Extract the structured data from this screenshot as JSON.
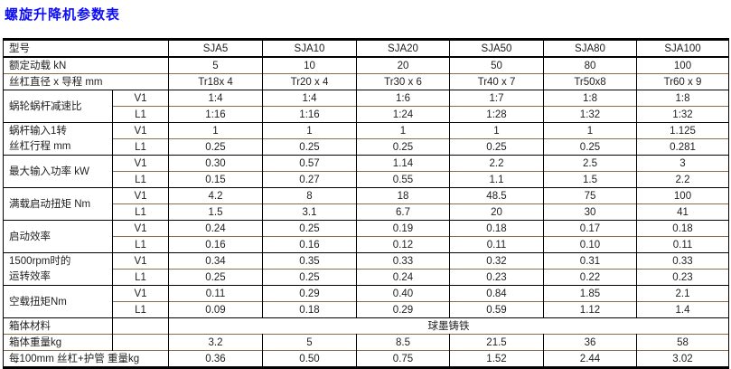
{
  "title": "螺旋升降机参数表",
  "colors": {
    "title": "#0e0ef4",
    "horizontal_rule": "#8a6d4c",
    "vertical_rule": "#000000",
    "text": "#1f1f1f"
  },
  "table": {
    "rows": [
      {
        "cells": [
          {
            "t": "型号",
            "cs": 2,
            "cls": "lbl"
          },
          {
            "t": "SJA5"
          },
          {
            "t": "SJA10"
          },
          {
            "t": "SJA20"
          },
          {
            "t": "SJA50"
          },
          {
            "t": "SJA80"
          },
          {
            "t": "SJA100"
          }
        ]
      },
      {
        "cells": [
          {
            "t": "额定动载 kN",
            "cs": 2,
            "cls": "lbl"
          },
          {
            "t": "5"
          },
          {
            "t": "10"
          },
          {
            "t": "20"
          },
          {
            "t": "50"
          },
          {
            "t": "80"
          },
          {
            "t": "100"
          }
        ]
      },
      {
        "cells": [
          {
            "t": "丝杠直径 x 导程 mm",
            "cs": 2,
            "cls": "lbl"
          },
          {
            "t": "Tr18x 4"
          },
          {
            "t": "Tr20 x 4"
          },
          {
            "t": "Tr30 x 6"
          },
          {
            "t": "Tr40 x 7"
          },
          {
            "t": "Tr50x8"
          },
          {
            "t": "Tr60 x 9"
          }
        ]
      },
      {
        "cells": [
          {
            "t": "蜗轮蜗杆减速比",
            "rs": 2,
            "cls": "lbl"
          },
          {
            "t": "V1",
            "cls": "sub"
          },
          {
            "t": "1:4"
          },
          {
            "t": "1:4"
          },
          {
            "t": "1:6"
          },
          {
            "t": "1:7"
          },
          {
            "t": "1:8"
          },
          {
            "t": "1:8"
          }
        ]
      },
      {
        "cells": [
          {
            "t": "L1",
            "cls": "sub"
          },
          {
            "t": "1:16"
          },
          {
            "t": "1:16"
          },
          {
            "t": "1:24"
          },
          {
            "t": "1:28"
          },
          {
            "t": "1:32"
          },
          {
            "t": "1:32"
          }
        ]
      },
      {
        "cells": [
          {
            "t": "蜗杆输入1转\n丝杠行程 mm",
            "rs": 2,
            "cls": "lbl pre"
          },
          {
            "t": "V1",
            "cls": "sub"
          },
          {
            "t": "1"
          },
          {
            "t": "1"
          },
          {
            "t": "1"
          },
          {
            "t": "1"
          },
          {
            "t": "1"
          },
          {
            "t": "1.125"
          }
        ]
      },
      {
        "cells": [
          {
            "t": "L1",
            "cls": "sub"
          },
          {
            "t": "0.25"
          },
          {
            "t": "0.25"
          },
          {
            "t": "0.25"
          },
          {
            "t": "0.25"
          },
          {
            "t": "0.25"
          },
          {
            "t": "0.281"
          }
        ]
      },
      {
        "cells": [
          {
            "t": "最大输入功率 kW",
            "rs": 2,
            "cls": "lbl"
          },
          {
            "t": "V1",
            "cls": "sub"
          },
          {
            "t": "0.30"
          },
          {
            "t": "0.57"
          },
          {
            "t": "1.14"
          },
          {
            "t": "2.2"
          },
          {
            "t": "2.5"
          },
          {
            "t": "3"
          }
        ]
      },
      {
        "cells": [
          {
            "t": "L1",
            "cls": "sub"
          },
          {
            "t": "0.15"
          },
          {
            "t": "0.27"
          },
          {
            "t": "0.55"
          },
          {
            "t": "1.1"
          },
          {
            "t": "1.5"
          },
          {
            "t": "2.2"
          }
        ]
      },
      {
        "cells": [
          {
            "t": "满载启动扭矩 Nm",
            "rs": 2,
            "cls": "lbl"
          },
          {
            "t": "V1",
            "cls": "sub"
          },
          {
            "t": "4.2"
          },
          {
            "t": "8"
          },
          {
            "t": "18"
          },
          {
            "t": "48.5"
          },
          {
            "t": "75"
          },
          {
            "t": "100"
          }
        ]
      },
      {
        "cells": [
          {
            "t": "L1",
            "cls": "sub"
          },
          {
            "t": "1.5"
          },
          {
            "t": "3.1"
          },
          {
            "t": "6.7"
          },
          {
            "t": "20"
          },
          {
            "t": "30"
          },
          {
            "t": "41"
          }
        ]
      },
      {
        "cells": [
          {
            "t": "启动效率",
            "rs": 2,
            "cls": "lbl"
          },
          {
            "t": "V1",
            "cls": "sub"
          },
          {
            "t": "0.24"
          },
          {
            "t": "0.25"
          },
          {
            "t": "0.19"
          },
          {
            "t": "0.18"
          },
          {
            "t": "0.17"
          },
          {
            "t": "0.18"
          }
        ]
      },
      {
        "cells": [
          {
            "t": "L1",
            "cls": "sub"
          },
          {
            "t": "0.16"
          },
          {
            "t": "0.16"
          },
          {
            "t": "0.12"
          },
          {
            "t": "0.11"
          },
          {
            "t": "0.10"
          },
          {
            "t": "0.11"
          }
        ]
      },
      {
        "cells": [
          {
            "t": "1500rpm时的\n运转效率",
            "rs": 2,
            "cls": "lbl pre"
          },
          {
            "t": "V1",
            "cls": "sub"
          },
          {
            "t": "0.34"
          },
          {
            "t": "0.35"
          },
          {
            "t": "0.33"
          },
          {
            "t": "0.32"
          },
          {
            "t": "0.31"
          },
          {
            "t": "0.33"
          }
        ]
      },
      {
        "cells": [
          {
            "t": "L1",
            "cls": "sub"
          },
          {
            "t": "0.25"
          },
          {
            "t": "0.25"
          },
          {
            "t": "0.24"
          },
          {
            "t": "0.23"
          },
          {
            "t": "0.22"
          },
          {
            "t": "0.23"
          }
        ]
      },
      {
        "cells": [
          {
            "t": "空载扭矩Nm",
            "rs": 2,
            "cls": "lbl"
          },
          {
            "t": "V1",
            "cls": "sub"
          },
          {
            "t": "0.11"
          },
          {
            "t": "0.29"
          },
          {
            "t": "0.40"
          },
          {
            "t": "0.84"
          },
          {
            "t": "1.85"
          },
          {
            "t": "2.1"
          }
        ]
      },
      {
        "cells": [
          {
            "t": "L1",
            "cls": "sub"
          },
          {
            "t": "0.09"
          },
          {
            "t": "0.18"
          },
          {
            "t": "0.29"
          },
          {
            "t": "0.59"
          },
          {
            "t": "1.12"
          },
          {
            "t": "1.4"
          }
        ]
      },
      {
        "cells": [
          {
            "t": "箱体材料",
            "cls": "lbl"
          },
          {
            "t": "",
            "cls": "sub"
          },
          {
            "t": "球墨铸铁",
            "cs": 6
          }
        ]
      },
      {
        "cells": [
          {
            "t": "箱体重量kg",
            "cls": "lbl"
          },
          {
            "t": "",
            "cls": "sub"
          },
          {
            "t": "3.2"
          },
          {
            "t": "5"
          },
          {
            "t": "8.5"
          },
          {
            "t": "21.5"
          },
          {
            "t": "36"
          },
          {
            "t": "58"
          }
        ]
      },
      {
        "cells": [
          {
            "t": "每100mm 丝杠+护管 重量kg",
            "cs": 2,
            "cls": "lbl"
          },
          {
            "t": "0.36"
          },
          {
            "t": "0.50"
          },
          {
            "t": "0.75"
          },
          {
            "t": "1.52"
          },
          {
            "t": "2.44"
          },
          {
            "t": "3.02"
          }
        ]
      }
    ]
  }
}
